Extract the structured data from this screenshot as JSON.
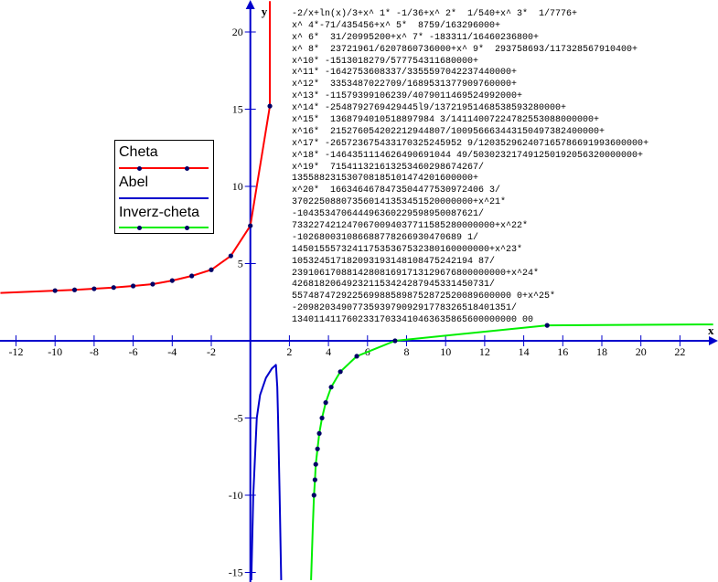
{
  "chart_data": {
    "type": "line",
    "xlabel": "x",
    "ylabel": "y",
    "xlim": [
      -12.8,
      23.7
    ],
    "ylim": [
      -15.5,
      22
    ],
    "x_ticks": [
      -12,
      -10,
      -8,
      -6,
      -4,
      -2,
      2,
      4,
      6,
      8,
      10,
      12,
      14,
      16,
      18,
      20,
      22
    ],
    "y_ticks": [
      -15,
      -10,
      -5,
      5,
      10,
      15,
      20
    ],
    "grid": false,
    "legend_placement": "left",
    "series": [
      {
        "name": "Cheta",
        "color": "#ff0000",
        "line": [
          [
            -12.8,
            3.1
          ],
          [
            -10,
            3.25
          ],
          [
            -9,
            3.3
          ],
          [
            -8,
            3.37
          ],
          [
            -7,
            3.45
          ],
          [
            -6,
            3.55
          ],
          [
            -5,
            3.67
          ],
          [
            -4,
            3.9
          ],
          [
            -3,
            4.2
          ],
          [
            -2,
            4.6
          ],
          [
            -1,
            5.5
          ],
          [
            0,
            7.45
          ],
          [
            1,
            15.2
          ],
          [
            1,
            22
          ]
        ],
        "markers": [
          [
            -10,
            3.25
          ],
          [
            -9,
            3.3
          ],
          [
            -8,
            3.37
          ],
          [
            -7,
            3.45
          ],
          [
            -6,
            3.55
          ],
          [
            -5,
            3.67
          ],
          [
            -4,
            3.9
          ],
          [
            -3,
            4.2
          ],
          [
            -2,
            4.6
          ],
          [
            -1,
            5.5
          ],
          [
            0,
            7.45
          ],
          [
            1,
            15.2
          ]
        ]
      },
      {
        "name": "Abel",
        "color": "#0000cc",
        "line": [
          [
            0.05,
            -15.5
          ],
          [
            0.15,
            -10
          ],
          [
            0.33,
            -5
          ],
          [
            0.5,
            -3.5
          ],
          [
            0.8,
            -2.4
          ],
          [
            1.1,
            -1.8
          ],
          [
            1.31,
            -1.56
          ],
          [
            1.38,
            -3
          ],
          [
            1.42,
            -5
          ],
          [
            1.5,
            -10
          ],
          [
            1.58,
            -15.5
          ]
        ],
        "markers": []
      },
      {
        "name": "Inverz-cheta",
        "color": "#00ee00",
        "line": [
          [
            3.11,
            -15.5
          ],
          [
            3.2,
            -12
          ],
          [
            3.26,
            -10
          ],
          [
            3.31,
            -9
          ],
          [
            3.35,
            -8
          ],
          [
            3.44,
            -7
          ],
          [
            3.53,
            -6
          ],
          [
            3.67,
            -5
          ],
          [
            3.86,
            -4
          ],
          [
            4.14,
            -3
          ],
          [
            4.61,
            -2
          ],
          [
            5.45,
            -1
          ],
          [
            7.41,
            0
          ],
          [
            15.2,
            1
          ],
          [
            23.7,
            1.06
          ]
        ],
        "markers": [
          [
            3.26,
            -10
          ],
          [
            3.31,
            -9
          ],
          [
            3.35,
            -8
          ],
          [
            3.44,
            -7
          ],
          [
            3.53,
            -6
          ],
          [
            3.67,
            -5
          ],
          [
            3.86,
            -4
          ],
          [
            4.14,
            -3
          ],
          [
            4.61,
            -2
          ],
          [
            5.45,
            -1
          ],
          [
            7.41,
            0
          ],
          [
            15.2,
            1
          ]
        ]
      }
    ],
    "marker_color": "#000066",
    "axis_color": "#0000cc",
    "annotation_lines": [
      "-2/x+ln(x)/3+x^ 1* -1/36+x^ 2*  1/540+x^ 3*  1/7776+",
      "x^ 4*-71/435456+x^ 5*  8759/163296000+",
      "x^ 6*  31/20995200+x^ 7* -183311/16460236800+",
      "x^ 8*  23721961/6207860736000+x^ 9*  293758693/117328567910400+",
      "x^10* -1513018279/577754311680000+",
      "x^11* -1642753608337/3355597042237440000+",
      "x^12*  3353487022709/1689531377909760000+",
      "x^13* -11579399106239/4079011469524992000+",
      "x^14* -2548792769429445l9/13721951468538593280000+",
      "x^15*  1368794010518897984 3/14114007224782553088000000+",
      "x^16*  215276054202212944807/100956663443150497382400000+",
      "x^17* -265723675433170325245952 9/120352962407165786691993600000+",
      "x^18* -1464351114626490691044 49/503023217491250192056320000000+",
      "x^19*  715411321613253460298674267/",
      "135588231530708185101474201600000+",
      "x^20*  1663464678473504477530972406 3/",
      "370225088073560141353451520000000+x^21*",
      "-104353470644496360229598950087621/",
      "7332274212470670094037711585280000000+x^22*",
      "-102680031086688778266930470689 1/",
      "145015557324117535367532380160000000+x^23*",
      "105324517182093193148108475242194 87/",
      "239106170881428081691713129676800000000+x^24*",
      "426818206492321153424287945331450731/",
      "5574874729225699885898752872520089600000 0+x^25*",
      "-209820349077359397909291778326518401351/",
      "13401141176023317033410463635865600000000 00"
    ]
  }
}
